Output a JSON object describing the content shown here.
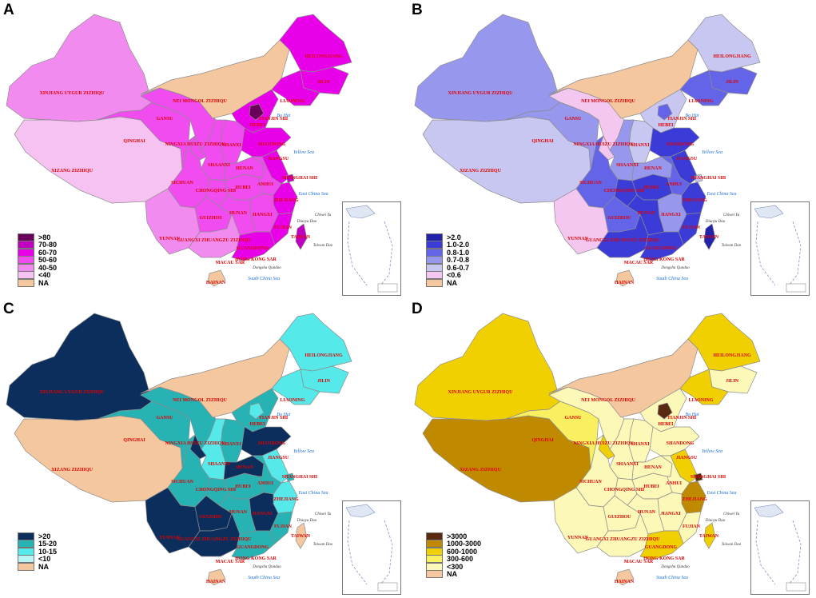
{
  "panels": [
    {
      "letter": "A",
      "legend": [
        {
          "label": ">80",
          "color": "#6a005a"
        },
        {
          "label": "70-80",
          "color": "#c000c0"
        },
        {
          "label": "60-70",
          "color": "#e800e8"
        },
        {
          "label": "50-60",
          "color": "#f04cf0"
        },
        {
          "label": "40-50",
          "color": "#f28bf0"
        },
        {
          "label": "<40",
          "color": "#f6c2f2"
        },
        {
          "label": "NA",
          "color": "#f5c79e"
        }
      ],
      "colors": {
        "xinjiang": "#f28bf0",
        "xizang": "#f6c2f2",
        "qinghai": "#f04cf0",
        "gansu": "#f04cf0",
        "nei": "#f5c79e",
        "hlj": "#e800e8",
        "jilin": "#e800e8",
        "liaoning": "#e800e8",
        "hebei": "#e800e8",
        "beijing": "#6a005a",
        "shanxi": "#f04cf0",
        "shaanxi": "#f04cf0",
        "ningxia": "#f04cf0",
        "sichuan": "#f04cf0",
        "yunnan": "#f28bf0",
        "guizhou": "#f04cf0",
        "chongqing": "#f04cf0",
        "hubei": "#f04cf0",
        "henan": "#f04cf0",
        "shandong": "#e800e8",
        "jiangsu": "#e800e8",
        "anhui": "#f04cf0",
        "zhejiang": "#e800e8",
        "fujian": "#e800e8",
        "jiangxi": "#f04cf0",
        "hunan": "#f04cf0",
        "guangxi": "#f28bf0",
        "guangdong": "#e800e8",
        "hainan": "#f5c79e",
        "taiwan": "#c000c0",
        "shanghai": "#c000c0"
      }
    },
    {
      "letter": "B",
      "legend": [
        {
          "label": ">2.0",
          "color": "#2222aa"
        },
        {
          "label": "1.0-2.0",
          "color": "#3b3bd8"
        },
        {
          "label": "0.8-1.0",
          "color": "#6464e8"
        },
        {
          "label": "0.7-0.8",
          "color": "#9797ee"
        },
        {
          "label": "0.6-0.7",
          "color": "#c7c7f2"
        },
        {
          "label": "<0.6",
          "color": "#f3c7ef"
        },
        {
          "label": "NA",
          "color": "#f5c79e"
        }
      ],
      "colors": {
        "xinjiang": "#9797ee",
        "xizang": "#c7c7f2",
        "qinghai": "#9797ee",
        "gansu": "#f3c7ef",
        "nei": "#f5c79e",
        "hlj": "#c7c7f2",
        "jilin": "#6464e8",
        "liaoning": "#6464e8",
        "hebei": "#c7c7f2",
        "beijing": "#6464e8",
        "shanxi": "#c7c7f2",
        "shaanxi": "#9797ee",
        "ningxia": "#f3c7ef",
        "sichuan": "#6464e8",
        "yunnan": "#f3c7ef",
        "guizhou": "#6464e8",
        "chongqing": "#3b3bd8",
        "hubei": "#3b3bd8",
        "henan": "#9797ee",
        "shandong": "#3b3bd8",
        "jiangsu": "#3b3bd8",
        "anhui": "#6464e8",
        "zhejiang": "#3b3bd8",
        "fujian": "#3b3bd8",
        "jiangxi": "#9797ee",
        "hunan": "#3b3bd8",
        "guangxi": "#3b3bd8",
        "guangdong": "#3b3bd8",
        "hainan": "#f5c79e",
        "taiwan": "#2222aa",
        "shanghai": "#c7c7f2"
      }
    },
    {
      "letter": "C",
      "legend": [
        {
          "label": ">20",
          "color": "#0b2e5c"
        },
        {
          "label": "15-20",
          "color": "#27b3b3"
        },
        {
          "label": "10-15",
          "color": "#55e9e9"
        },
        {
          "label": "<10",
          "color": "#b8f6f6"
        },
        {
          "label": "NA",
          "color": "#f5c79e"
        }
      ],
      "colors": {
        "xinjiang": "#0b2e5c",
        "xizang": "#f5c79e",
        "qinghai": "#27b3b3",
        "gansu": "#27b3b3",
        "nei": "#f5c79e",
        "hlj": "#55e9e9",
        "jilin": "#55e9e9",
        "liaoning": "#55e9e9",
        "hebei": "#27b3b3",
        "beijing": "#55e9e9",
        "shanxi": "#27b3b3",
        "shaanxi": "#55e9e9",
        "ningxia": "#0b2e5c",
        "sichuan": "#27b3b3",
        "yunnan": "#0b2e5c",
        "guizhou": "#0b2e5c",
        "chongqing": "#27b3b3",
        "hubei": "#27b3b3",
        "henan": "#0b2e5c",
        "shandong": "#0b2e5c",
        "jiangsu": "#55e9e9",
        "anhui": "#27b3b3",
        "zhejiang": "#55e9e9",
        "fujian": "#27b3b3",
        "jiangxi": "#0b2e5c",
        "hunan": "#27b3b3",
        "guangxi": "#0b2e5c",
        "guangdong": "#27b3b3",
        "hainan": "#f5c79e",
        "taiwan": "#f5c79e",
        "shanghai": "#27b3b3"
      }
    },
    {
      "letter": "D",
      "legend": [
        {
          "label": ">3000",
          "color": "#5a2a10"
        },
        {
          "label": "1000-3000",
          "color": "#c08a00"
        },
        {
          "label": "600-1000",
          "color": "#f0d000"
        },
        {
          "label": "300-600",
          "color": "#f8f060"
        },
        {
          "label": "<300",
          "color": "#fbf8b8"
        },
        {
          "label": "NA",
          "color": "#f5c79e"
        }
      ],
      "colors": {
        "xinjiang": "#f0d000",
        "xizang": "#c08a00",
        "qinghai": "#f8f060",
        "gansu": "#fbf8b8",
        "nei": "#f5c79e",
        "hlj": "#f0d000",
        "jilin": "#fbf8b8",
        "liaoning": "#f0d000",
        "hebei": "#fbf8b8",
        "beijing": "#5a2a10",
        "shanxi": "#fbf8b8",
        "shaanxi": "#fbf8b8",
        "ningxia": "#f0d000",
        "sichuan": "#fbf8b8",
        "yunnan": "#fbf8b8",
        "guizhou": "#fbf8b8",
        "chongqing": "#fbf8b8",
        "hubei": "#fbf8b8",
        "henan": "#fbf8b8",
        "shandong": "#fbf8b8",
        "jiangsu": "#f0d000",
        "anhui": "#fbf8b8",
        "zhejiang": "#c08a00",
        "fujian": "#fbf8b8",
        "jiangxi": "#fbf8b8",
        "hunan": "#fbf8b8",
        "guangxi": "#fbf8b8",
        "guangdong": "#f0d000",
        "hainan": "#f5c79e",
        "taiwan": "#f0d000",
        "shanghai": "#5a2a10"
      }
    }
  ],
  "labels": {
    "xinjiang": "XINJIANG UYGUR ZIZHIQU",
    "xizang": "XIZANG ZIZHIQU",
    "qinghai": "QINGHAI",
    "gansu": "GANSU",
    "nei": "NEI MONGOL ZIZHIQU",
    "hlj": "HEILONGJIANG",
    "jilin": "JILIN",
    "liaoning": "LIAONING",
    "hebei": "HEBEI",
    "tianjin": "TIANJIN SHI",
    "shanxi": "SHANXI",
    "shaanxi": "SHAANXI",
    "ningxia": "NINGXIA HUIZU ZIZHIQU",
    "shandong": "SHANDONG",
    "henan": "HENAN",
    "sichuan": "SICHUAN",
    "chongqing": "CHONGQING SHI",
    "hubei": "HUBEI",
    "anhui": "ANHUI",
    "jiangsu": "JIANGSU",
    "shanghai": "SHANGHAI SHI",
    "zhejiang": "ZHEJIANG",
    "jiangxi": "JIANGXI",
    "hunan": "HUNAN",
    "guizhou": "GUIZHOU",
    "yunnan": "YUNNAN",
    "guangxi": "GUANGXI ZHUANGZU ZIZHIQU",
    "guangdong": "GUANGDONG",
    "fujian": "FUJIAN",
    "taiwan": "TAIWAN",
    "hongkong": "HONG KONG SAR",
    "macau": "MACAU SAR",
    "hainan": "HAINAN",
    "yellow_sea": "Yellow Sea",
    "east_china_sea": "East China Sea",
    "south_china_sea": "South China Sea",
    "bo_hai": "Bo Hai",
    "diaoyu": "Diaoyu Dao",
    "chiwei": "Chiwei Yu",
    "taiwan_dao": "Taiwan Dao",
    "dongsha": "Dongsha Qundao"
  }
}
